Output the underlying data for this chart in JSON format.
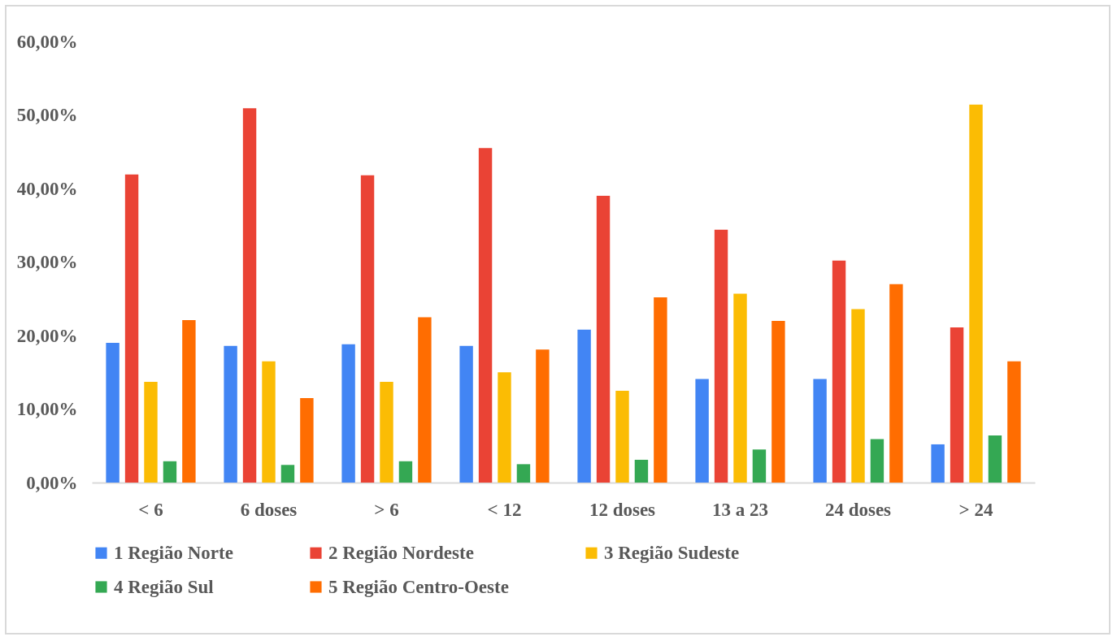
{
  "chart_data": {
    "type": "bar",
    "categories": [
      "< 6",
      "6 doses",
      "> 6",
      "< 12",
      "12 doses",
      "13 a 23",
      "24 doses",
      "> 24"
    ],
    "series": [
      {
        "name": "1 Região Norte",
        "color": "#4285f4",
        "values": [
          19.0,
          18.6,
          18.8,
          18.6,
          20.8,
          14.1,
          14.1,
          5.2
        ]
      },
      {
        "name": "2 Região Nordeste",
        "color": "#ea4335",
        "values": [
          41.9,
          50.9,
          41.8,
          45.5,
          39.0,
          34.4,
          30.2,
          21.1
        ]
      },
      {
        "name": "3 Região Sudeste",
        "color": "#fbbc04",
        "values": [
          13.7,
          16.5,
          13.7,
          15.0,
          12.5,
          25.7,
          23.6,
          51.4
        ]
      },
      {
        "name": "4 Região Sul",
        "color": "#34a853",
        "values": [
          2.9,
          2.4,
          2.9,
          2.5,
          3.1,
          4.5,
          5.9,
          6.4
        ]
      },
      {
        "name": "5 Região Centro-Oeste",
        "color": "#ff6d01",
        "values": [
          22.1,
          11.5,
          22.5,
          18.1,
          25.2,
          22.0,
          27.0,
          16.5
        ]
      }
    ],
    "ylim": [
      0,
      60
    ],
    "yticks": [
      {
        "value": 0,
        "label": "0,00%"
      },
      {
        "value": 10,
        "label": "10,00%"
      },
      {
        "value": 20,
        "label": "20,00%"
      },
      {
        "value": 30,
        "label": "30,00%"
      },
      {
        "value": 40,
        "label": "40,00%"
      },
      {
        "value": 50,
        "label": "50,00%"
      },
      {
        "value": 60,
        "label": "60,00%"
      }
    ],
    "grid": false,
    "legend": "bottom"
  }
}
